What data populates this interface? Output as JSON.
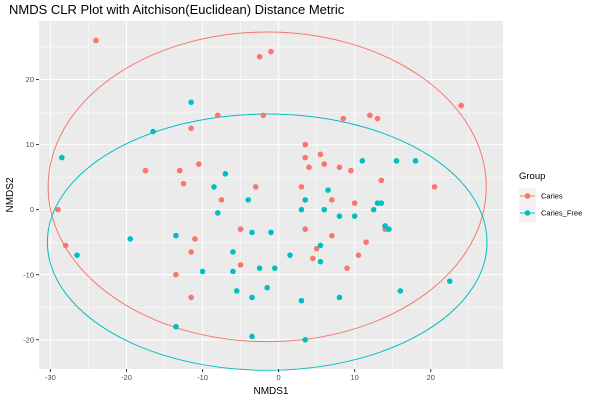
{
  "chart_data": {
    "type": "scatter",
    "title": "NMDS CLR Plot with Aitchison(Euclidean) Distance Metric",
    "xlabel": "NMDS1",
    "ylabel": "NMDS2",
    "xlim": [
      -31.5,
      29.5
    ],
    "ylim": [
      -24.5,
      29
    ],
    "x_ticks": [
      -30,
      -20,
      -10,
      0,
      10,
      20
    ],
    "y_ticks": [
      -20,
      -10,
      0,
      10,
      20
    ],
    "tick_labels_x": [
      "-30",
      "-20",
      "-10",
      "0",
      "10",
      "20"
    ],
    "tick_labels_y": [
      "-20",
      "-10",
      "0",
      "10",
      "20"
    ],
    "grid": true,
    "legend": {
      "title": "Group",
      "placement": "right",
      "entries": [
        "Caries",
        "Caries_Free"
      ]
    },
    "series": [
      {
        "name": "Caries",
        "color": "#F8766D",
        "ellipse": {
          "center": [
            -1.5,
            3.5
          ],
          "rx": 28.8,
          "ry": 23.8
        },
        "points": [
          [
            -24,
            26
          ],
          [
            -2.5,
            23.5
          ],
          [
            -1,
            24.3
          ],
          [
            -29,
            0
          ],
          [
            -28,
            -5.5
          ],
          [
            -17.5,
            6
          ],
          [
            -13,
            6
          ],
          [
            -12.5,
            4
          ],
          [
            -11.5,
            12.5
          ],
          [
            -11.5,
            -6.5
          ],
          [
            -11.5,
            -13.5
          ],
          [
            -11,
            -4.5
          ],
          [
            -13.5,
            -10
          ],
          [
            -10.5,
            7
          ],
          [
            -8,
            14.5
          ],
          [
            -7.5,
            1.5
          ],
          [
            -5,
            -3
          ],
          [
            -5,
            -8.5
          ],
          [
            -3,
            3.5
          ],
          [
            -2,
            14.5
          ],
          [
            3,
            3.5
          ],
          [
            3.5,
            10
          ],
          [
            3.5,
            8
          ],
          [
            4,
            6.5
          ],
          [
            3.5,
            -3
          ],
          [
            4.5,
            -7.5
          ],
          [
            5,
            -6
          ],
          [
            5.5,
            8.5
          ],
          [
            6,
            7
          ],
          [
            7,
            1.5
          ],
          [
            7,
            -4
          ],
          [
            8,
            6.5
          ],
          [
            8.5,
            14
          ],
          [
            9,
            -9
          ],
          [
            9.5,
            6
          ],
          [
            10,
            1
          ],
          [
            10.5,
            -7
          ],
          [
            11.5,
            -5
          ],
          [
            12,
            14.5
          ],
          [
            13,
            14
          ],
          [
            13.5,
            4.5
          ],
          [
            14,
            -3
          ],
          [
            20.5,
            3.5
          ],
          [
            24,
            16
          ]
        ]
      },
      {
        "name": "Caries_Free",
        "color": "#00BFC4",
        "ellipse": {
          "center": [
            -1.5,
            -5
          ],
          "rx": 28.9,
          "ry": 19.7
        },
        "points": [
          [
            -28.5,
            8
          ],
          [
            -26.5,
            -7
          ],
          [
            -19.5,
            -4.5
          ],
          [
            -16.5,
            12
          ],
          [
            -13.5,
            -18
          ],
          [
            -13.5,
            -4
          ],
          [
            -11.5,
            16.5
          ],
          [
            -10,
            -9.5
          ],
          [
            -8.5,
            3.5
          ],
          [
            -8,
            -0.5
          ],
          [
            -7,
            5.5
          ],
          [
            -6,
            -6.5
          ],
          [
            -6,
            -9.5
          ],
          [
            -5.5,
            -12.5
          ],
          [
            -4,
            1.5
          ],
          [
            -3.5,
            -3.5
          ],
          [
            -3.5,
            -13.5
          ],
          [
            -3.5,
            -19.5
          ],
          [
            -2.5,
            -9
          ],
          [
            -1.5,
            -12
          ],
          [
            -1,
            -3.5
          ],
          [
            -0.5,
            -9
          ],
          [
            1.5,
            -7
          ],
          [
            3,
            0
          ],
          [
            3,
            -14
          ],
          [
            3.5,
            -20
          ],
          [
            3.5,
            1.5
          ],
          [
            5.5,
            -5.5
          ],
          [
            5.5,
            -8
          ],
          [
            6,
            0
          ],
          [
            6.5,
            3
          ],
          [
            8,
            -1
          ],
          [
            8,
            -13.5
          ],
          [
            10,
            -1
          ],
          [
            11,
            7.5
          ],
          [
            12.5,
            0
          ],
          [
            13,
            1
          ],
          [
            13.5,
            1
          ],
          [
            14,
            -2.5
          ],
          [
            14.5,
            -3
          ],
          [
            15.5,
            7.5
          ],
          [
            16,
            -12.5
          ],
          [
            18,
            7.5
          ],
          [
            22.5,
            -11
          ]
        ]
      }
    ]
  }
}
